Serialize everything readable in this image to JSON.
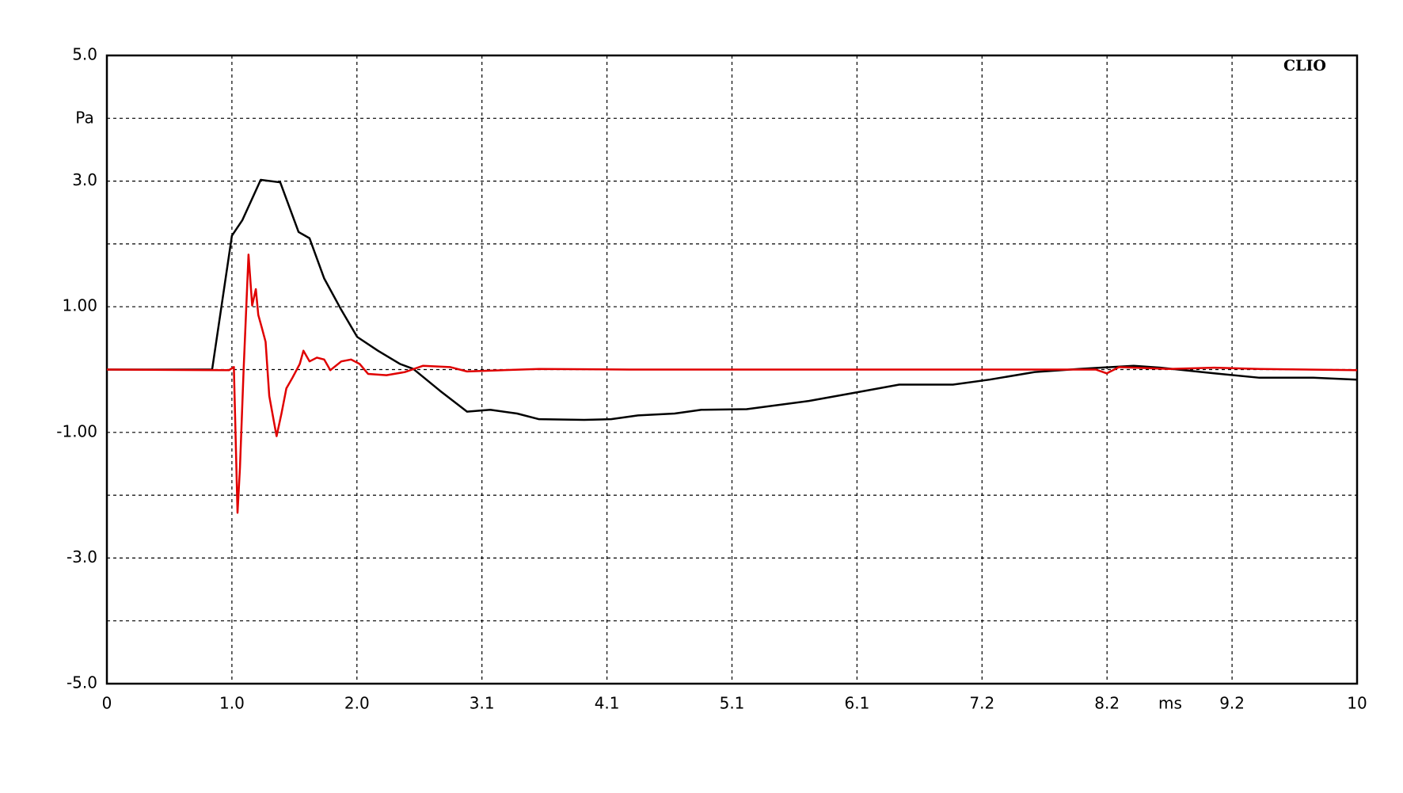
{
  "chart_data": {
    "type": "line",
    "annotation": "CLIO",
    "y_label": "Pa",
    "x_label": "ms",
    "xlim": [
      0,
      10.24
    ],
    "ylim": [
      -5,
      5
    ],
    "xticks": [
      0,
      {
        "value": 1.024,
        "label": "1.0"
      },
      {
        "value": 2.048,
        "label": "2.0"
      },
      {
        "value": 3.072,
        "label": "3.1"
      },
      {
        "value": 4.096,
        "label": "4.1"
      },
      {
        "value": 5.12,
        "label": "5.1"
      },
      {
        "value": 6.144,
        "label": "6.1"
      },
      {
        "value": 7.168,
        "label": "7.2"
      },
      {
        "value": 8.192,
        "label": "8.2"
      },
      {
        "value": 9.216,
        "label": "9.2"
      },
      {
        "value": 10.24,
        "label": "10"
      }
    ],
    "yticks": [
      {
        "value": 5,
        "label": "5.0"
      },
      {
        "value": 3,
        "label": "3.0"
      },
      {
        "value": 1,
        "label": "1.00"
      },
      {
        "value": -1,
        "label": "-1.00"
      },
      {
        "value": -3,
        "label": "-3.0"
      },
      {
        "value": -5,
        "label": "-5.0"
      }
    ],
    "ygrid": [
      4,
      2,
      0,
      -2,
      -4
    ],
    "grid": true,
    "series": [
      {
        "color": "#000000",
        "x": [
          0,
          0.862,
          1.024,
          1.11,
          1.26,
          1.42,
          1.57,
          1.66,
          1.78,
          1.92,
          2.05,
          2.22,
          2.4,
          2.51,
          2.73,
          2.95,
          3.14,
          3.36,
          3.54,
          3.91,
          4.13,
          4.35,
          4.65,
          4.87,
          5.24,
          5.75,
          6.12,
          6.49,
          6.93,
          7.23,
          7.6,
          7.96,
          8.41,
          8.63,
          9.07,
          9.44,
          9.88,
          10.24
        ],
        "values": [
          0,
          0,
          2.13,
          2.38,
          3.02,
          2.98,
          2.19,
          2.09,
          1.45,
          0.95,
          0.52,
          0.3,
          0.09,
          0.01,
          -0.34,
          -0.67,
          -0.64,
          -0.7,
          -0.79,
          -0.8,
          -0.79,
          -0.73,
          -0.7,
          -0.64,
          -0.63,
          -0.5,
          -0.37,
          -0.24,
          -0.24,
          -0.16,
          -0.04,
          0.01,
          0.06,
          0.03,
          -0.06,
          -0.13,
          -0.13,
          -0.16
        ]
      },
      {
        "color": "#e00000",
        "x": [
          0,
          1.0,
          1.04,
          1.07,
          1.09,
          1.12,
          1.16,
          1.19,
          1.22,
          1.24,
          1.27,
          1.3,
          1.33,
          1.37,
          1.39,
          1.43,
          1.47,
          1.52,
          1.58,
          1.61,
          1.66,
          1.72,
          1.78,
          1.83,
          1.92,
          2.0,
          2.07,
          2.14,
          2.29,
          2.44,
          2.59,
          2.81,
          2.95,
          3.54,
          4.28,
          5.75,
          7.6,
          8.1,
          8.19,
          8.29,
          8.7,
          9.07,
          9.44,
          10.24
        ],
        "values": [
          0,
          -0.01,
          0.04,
          -2.28,
          -1.56,
          0,
          1.83,
          1.02,
          1.28,
          0.87,
          0.66,
          0.44,
          -0.42,
          -0.85,
          -1.06,
          -0.7,
          -0.3,
          -0.13,
          0.09,
          0.3,
          0.13,
          0.19,
          0.16,
          -0.01,
          0.13,
          0.16,
          0.09,
          -0.07,
          -0.09,
          -0.04,
          0.06,
          0.04,
          -0.03,
          0.01,
          0,
          0,
          0,
          0,
          -0.06,
          0.04,
          0.01,
          0.03,
          0.01,
          -0.01
        ]
      }
    ]
  }
}
